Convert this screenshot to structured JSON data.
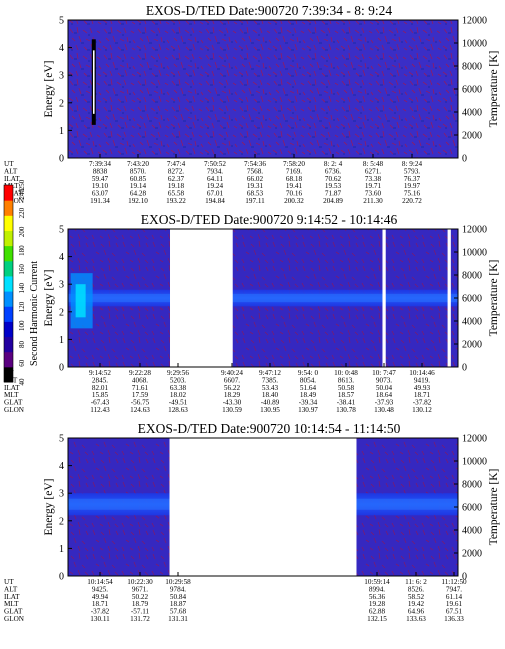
{
  "chart_data": [
    {
      "type": "heatmap",
      "title": "EXOS-D/TED  Date:900720  7:39:34 - 8: 9:24",
      "ylabel": "Energy [eV]",
      "ylabel_right": "Temperature [K]",
      "ylim": [
        0,
        5
      ],
      "ylim_right": [
        0,
        12000
      ],
      "yticks": [
        "0",
        "1",
        "2",
        "3",
        "4",
        "5"
      ],
      "yticks_right": [
        "0",
        "2000",
        "4000",
        "6000",
        "8000",
        "10000",
        "12000"
      ],
      "xlim": [
        "7:39:34",
        "8: 9:24"
      ],
      "data_gaps": [],
      "band_energy": null,
      "spike_x": [
        "7:41:30"
      ],
      "ephemeris": {
        "labels": [
          "UT",
          "ALT",
          "ILAT",
          "MLT",
          "GLAT",
          "GLON"
        ],
        "columns": [
          [
            "7:39:34",
            "8838",
            "59.47",
            "19.10",
            "63.07",
            "191.34"
          ],
          [
            "7:43:20",
            "8570.",
            "60.85",
            "19.14",
            "64.28",
            "192.10"
          ],
          [
            "7:47:4",
            "8272.",
            "62.37",
            "19.18",
            "65.58",
            "193.22"
          ],
          [
            "7:50:52",
            "7934.",
            "64.11",
            "19.24",
            "67.01",
            "194.84"
          ],
          [
            "7:54:36",
            "7568.",
            "66.02",
            "19.31",
            "68.53",
            "197.11"
          ],
          [
            "7:58:20",
            "7169.",
            "68.18",
            "19.41",
            "70.16",
            "200.32"
          ],
          [
            "8: 2: 4",
            "6736.",
            "70.62",
            "19.53",
            "71.87",
            "204.89"
          ],
          [
            "8: 5:48",
            "6271.",
            "73.38",
            "19.71",
            "73.60",
            "211.30"
          ],
          [
            "8: 9:24",
            "5793.",
            "76.37",
            "19.97",
            "75.16",
            "220.72"
          ]
        ]
      }
    },
    {
      "type": "heatmap",
      "title": "EXOS-D/TED  Date:900720  9:14:52 - 10:14:46",
      "ylabel": "Energy [eV]",
      "ylabel_right": "Temperature [K]",
      "ylim": [
        0,
        5
      ],
      "ylim_right": [
        0,
        12000
      ],
      "yticks": [
        "0",
        "1",
        "2",
        "3",
        "4",
        "5"
      ],
      "yticks_right": [
        "0",
        "2000",
        "4000",
        "6000",
        "8000",
        "10000",
        "12000"
      ],
      "xlim": [
        "9:14:52",
        "10:14:46"
      ],
      "data_gaps": [
        [
          "9:30:32",
          "9:40:10"
        ],
        [
          "10: 3:10",
          "10: 3:40"
        ],
        [
          "10:13:10",
          "10:13:40"
        ]
      ],
      "band_energy": [
        2.2,
        2.8
      ],
      "spike_x": [
        "9:16:30"
      ],
      "ephemeris": {
        "labels": [
          "UT",
          "ALT",
          "ILAT",
          "MLT",
          "GLAT",
          "GLON"
        ],
        "columns": [
          [
            "9:14:52",
            "2845.",
            "82.01",
            "15.85",
            "-67.43",
            "112.43"
          ],
          [
            "9:22:28",
            "4068.",
            "71.61",
            "17.59",
            "-56.75",
            "124.63"
          ],
          [
            "9:29:56",
            "5203.",
            "63.38",
            "18.02",
            "-49.51",
            "128.63"
          ],
          [
            "9:40:24",
            "6607.",
            "56.22",
            "18.29",
            "-43.30",
            "130.59"
          ],
          [
            "9:47:12",
            "7385.",
            "53.43",
            "18.40",
            "-40.89",
            "130.95"
          ],
          [
            "9:54: 0",
            "8054.",
            "51.64",
            "18.49",
            "-39.34",
            "130.97"
          ],
          [
            "10: 0:48",
            "8613.",
            "50.58",
            "18.57",
            "-38.41",
            "130.78"
          ],
          [
            "10: 7:47",
            "9073.",
            "50.04",
            "18.64",
            "-37.93",
            "130.48"
          ],
          [
            "10:14:46",
            "9419.",
            "49.93",
            "18.71",
            "-37.82",
            "130.12"
          ]
        ]
      }
    },
    {
      "type": "heatmap",
      "title": "EXOS-D/TED  Date:900720  10:14:54 - 11:14:50",
      "ylabel": "Energy [eV]",
      "ylabel_right": "Temperature [K]",
      "ylim": [
        0,
        5
      ],
      "ylim_right": [
        0,
        12000
      ],
      "yticks": [
        "0",
        "1",
        "2",
        "3",
        "4",
        "5"
      ],
      "yticks_right": [
        "0",
        "2000",
        "4000",
        "6000",
        "8000",
        "10000",
        "12000"
      ],
      "xlim": [
        "10:14:54",
        "11:14:50"
      ],
      "data_gaps": [
        [
          "10:30:30",
          "10:59:14"
        ]
      ],
      "band_energy": [
        2.2,
        3.0
      ],
      "spike_x": [],
      "ephemeris": {
        "labels": [
          "UT",
          "ALT",
          "ILAT",
          "MLT",
          "GLAT",
          "GLON"
        ],
        "columns": [
          [
            "10:14:54",
            "9425.",
            "49.94",
            "18.71",
            "-37.82",
            "130.11"
          ],
          [
            "10:22:30",
            "9671.",
            "50.22",
            "18.79",
            "-57.11",
            "131.72"
          ],
          [
            "10:29:58",
            "9784.",
            "50.84",
            "18.87",
            "57.68",
            "131.31"
          ],
          [
            "10:59:14",
            "8994.",
            "56.36",
            "19.28",
            "62.88",
            "132.15"
          ],
          [
            "11: 6: 2",
            "8526.",
            "58.52",
            "19.42",
            "64.96",
            "133.63"
          ],
          [
            "11:12:50",
            "7947.",
            "61.14",
            "19.61",
            "67.51",
            "136.33"
          ]
        ]
      }
    }
  ],
  "colorbar": {
    "label": "Second Harmonic Current",
    "ticks": [
      "40",
      "60",
      "80",
      "100",
      "120",
      "140",
      "160",
      "180",
      "200",
      "220",
      "240",
      "250"
    ],
    "range": [
      40,
      250
    ],
    "colors": [
      "#000000",
      "#5a0080",
      "#2200a0",
      "#0000c8",
      "#0040ff",
      "#0090ff",
      "#00e0ff",
      "#00d080",
      "#40e000",
      "#c0f000",
      "#ffff00",
      "#ff8000",
      "#ff0000"
    ]
  }
}
